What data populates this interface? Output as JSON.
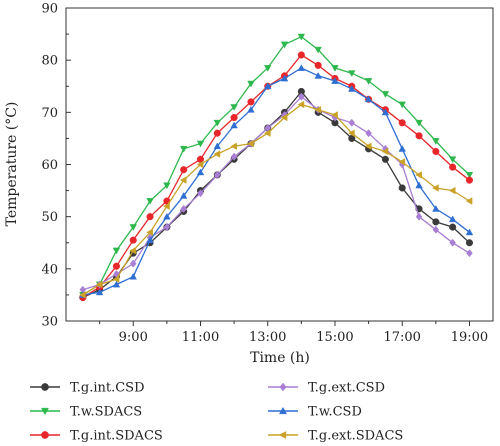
{
  "chart_data": {
    "type": "line",
    "title": "",
    "xlabel": "Time (h)",
    "ylabel": "Temperature (°C)",
    "xlim": [
      7.0,
      19.7
    ],
    "ylim": [
      30,
      90
    ],
    "x_ticks": [
      {
        "value": 9,
        "label": "9:00"
      },
      {
        "value": 11,
        "label": "11:00"
      },
      {
        "value": 13,
        "label": "13:00"
      },
      {
        "value": 15,
        "label": "15:00"
      },
      {
        "value": 17,
        "label": "17:00"
      },
      {
        "value": 19,
        "label": "19:00"
      }
    ],
    "y_ticks": [
      30,
      40,
      50,
      60,
      70,
      80,
      90
    ],
    "grid": false,
    "legend_position": "bottom",
    "x": [
      7.5,
      8.0,
      8.5,
      9.0,
      9.5,
      10.0,
      10.5,
      11.0,
      11.5,
      12.0,
      12.5,
      13.0,
      13.5,
      14.0,
      14.5,
      15.0,
      15.5,
      16.0,
      16.5,
      17.0,
      17.5,
      18.0,
      18.5,
      19.0
    ],
    "series": [
      {
        "name": "T.g.int.CSD",
        "color": "#3a3a3a",
        "marker": "circle",
        "values": [
          34.5,
          36,
          38.5,
          43,
          45,
          48,
          51,
          55,
          58,
          61,
          64,
          67,
          70,
          74,
          70,
          68,
          65,
          63,
          61,
          55.5,
          51.5,
          49,
          48,
          45
        ]
      },
      {
        "name": "T.w.SDACS",
        "color": "#2db84d",
        "marker": "triangle-down",
        "values": [
          35,
          37,
          43.5,
          48,
          53,
          56,
          63,
          64,
          68,
          71,
          75.5,
          78.5,
          83,
          84.5,
          82,
          78.5,
          77.5,
          76,
          73.5,
          71.5,
          68,
          64.5,
          61,
          58
        ]
      },
      {
        "name": "T.g.int.SDACS",
        "color": "#e8262a",
        "marker": "circle",
        "values": [
          34.5,
          36.5,
          40.5,
          45.5,
          50,
          53,
          59,
          61,
          66,
          69,
          72,
          75,
          77,
          81,
          79,
          76.5,
          75,
          72.5,
          70.5,
          68,
          65.5,
          62.5,
          59.5,
          57
        ]
      },
      {
        "name": "T.g.ext.CSD",
        "color": "#a87fd4",
        "marker": "diamond",
        "values": [
          36,
          37,
          39,
          41,
          46,
          48,
          51.5,
          54.5,
          58,
          61.5,
          64,
          67,
          69.5,
          73,
          70.5,
          69,
          68,
          66,
          63,
          60,
          50,
          47.5,
          45,
          43
        ]
      },
      {
        "name": "T.w.CSD",
        "color": "#2f6fd4",
        "marker": "triangle-up",
        "values": [
          35,
          35.5,
          37,
          38.5,
          45.5,
          50,
          54,
          58.5,
          63.5,
          67.5,
          70.5,
          75,
          76.5,
          78.5,
          77,
          76,
          74.5,
          72.5,
          70,
          63,
          56,
          51.5,
          49.5,
          47
        ]
      },
      {
        "name": "T.g.ext.SDACS",
        "color": "#c9a227",
        "marker": "triangle-left",
        "values": [
          35,
          37,
          38,
          43.5,
          47,
          52,
          57,
          60,
          62,
          63.5,
          64,
          66,
          69,
          71.5,
          70.5,
          69.5,
          66,
          63.5,
          62.5,
          60.5,
          58,
          55.5,
          55,
          53
        ]
      }
    ]
  }
}
